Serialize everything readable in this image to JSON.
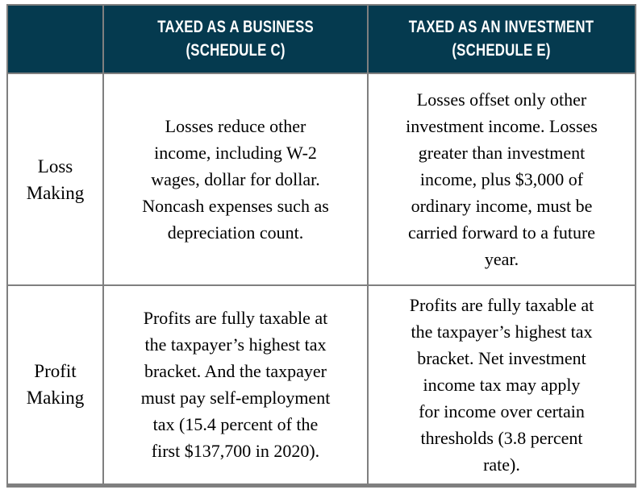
{
  "theme": {
    "header_bg": "#053A4F",
    "header_text_color": "#FFFFFF",
    "border_color": "#7F7F7F",
    "body_text_color": "#000000",
    "page_bg": "#FFFFFF"
  },
  "table": {
    "columns": [
      {
        "label": ""
      },
      {
        "label": "TAXED AS A BUSINESS\n(SCHEDULE C)"
      },
      {
        "label": "TAXED AS AN INVESTMENT\n(SCHEDULE E)"
      }
    ],
    "rows": [
      {
        "label": "Loss\nMaking",
        "business": "Losses reduce other\nincome, including W-2\nwages, dollar for dollar.\nNoncash expenses such as\ndepreciation count.",
        "investment": "Losses offset only other\ninvestment income. Losses\ngreater than investment\nincome, plus $3,000 of\nordinary income, must be\ncarried forward to a future\nyear."
      },
      {
        "label": "Profit\nMaking",
        "business": "Profits are fully taxable at\nthe taxpayer’s highest tax\nbracket. And the taxpayer\nmust pay self-employment\ntax (15.4 percent of the\nfirst $137,700 in 2020).",
        "investment": "Profits are fully taxable at\nthe taxpayer’s highest tax\nbracket. Net investment\nincome tax may apply\nfor income over certain\nthresholds (3.8 percent\nrate)."
      }
    ]
  }
}
